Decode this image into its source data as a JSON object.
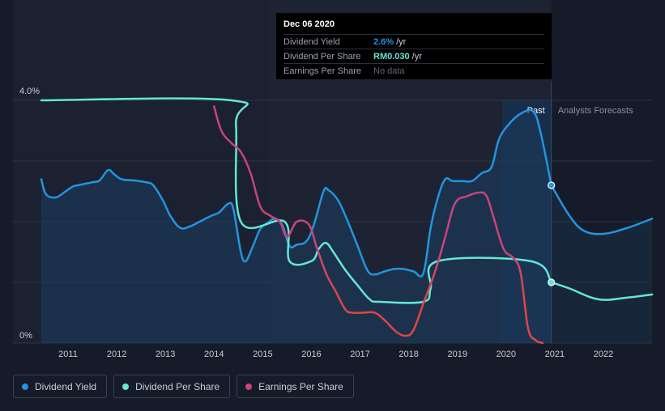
{
  "chart_data": {
    "type": "line",
    "x_ticks": [
      "2011",
      "2012",
      "2013",
      "2014",
      "2015",
      "2016",
      "2017",
      "2018",
      "2019",
      "2020",
      "2021",
      "2022"
    ],
    "y_ticks": [
      "0%",
      "4.0%"
    ],
    "past_label": "Past",
    "forecast_label": "Analysts Forecasts",
    "xlim": [
      2010.1,
      2023.0
    ],
    "ylim": [
      0,
      4.0
    ],
    "forecast_start": 2020.93,
    "colors": {
      "dividend_yield": "#2394df",
      "dividend_per_share": "#65e6d6",
      "earnings_per_share": "#c9437c",
      "earnings_negative": "#e04545"
    },
    "series": [
      {
        "name": "Dividend Yield",
        "key": "dividend_yield",
        "points": [
          [
            2010.45,
            2.7
          ],
          [
            2010.55,
            2.45
          ],
          [
            2010.75,
            2.4
          ],
          [
            2010.95,
            2.5
          ],
          [
            2011.1,
            2.58
          ],
          [
            2011.2,
            2.6
          ],
          [
            2011.5,
            2.65
          ],
          [
            2011.65,
            2.68
          ],
          [
            2011.82,
            2.85
          ],
          [
            2011.95,
            2.78
          ],
          [
            2012.1,
            2.7
          ],
          [
            2012.35,
            2.68
          ],
          [
            2012.6,
            2.65
          ],
          [
            2012.75,
            2.6
          ],
          [
            2012.95,
            2.35
          ],
          [
            2013.1,
            2.1
          ],
          [
            2013.3,
            1.9
          ],
          [
            2013.5,
            1.92
          ],
          [
            2013.7,
            2.0
          ],
          [
            2013.95,
            2.1
          ],
          [
            2014.1,
            2.15
          ],
          [
            2014.3,
            2.3
          ],
          [
            2014.4,
            2.2
          ],
          [
            2014.55,
            1.5
          ],
          [
            2014.65,
            1.35
          ],
          [
            2014.8,
            1.6
          ],
          [
            2014.95,
            1.88
          ],
          [
            2015.1,
            1.98
          ],
          [
            2015.25,
            2.05
          ],
          [
            2015.4,
            1.95
          ],
          [
            2015.55,
            1.6
          ],
          [
            2015.7,
            1.62
          ],
          [
            2015.9,
            1.68
          ],
          [
            2016.05,
            1.95
          ],
          [
            2016.25,
            2.5
          ],
          [
            2016.35,
            2.52
          ],
          [
            2016.55,
            2.35
          ],
          [
            2016.75,
            2.0
          ],
          [
            2016.95,
            1.6
          ],
          [
            2017.15,
            1.2
          ],
          [
            2017.3,
            1.13
          ],
          [
            2017.5,
            1.18
          ],
          [
            2017.7,
            1.22
          ],
          [
            2017.9,
            1.22
          ],
          [
            2018.1,
            1.18
          ],
          [
            2018.3,
            1.15
          ],
          [
            2018.45,
            1.9
          ],
          [
            2018.6,
            2.4
          ],
          [
            2018.75,
            2.7
          ],
          [
            2018.9,
            2.67
          ],
          [
            2019.1,
            2.67
          ],
          [
            2019.3,
            2.67
          ],
          [
            2019.5,
            2.8
          ],
          [
            2019.7,
            2.9
          ],
          [
            2019.85,
            3.35
          ],
          [
            2020.05,
            3.6
          ],
          [
            2020.3,
            3.78
          ],
          [
            2020.55,
            3.82
          ],
          [
            2020.7,
            3.5
          ],
          [
            2020.93,
            2.6
          ]
        ]
      },
      {
        "name": "Dividend Yield Forecast",
        "key": "dividend_yield",
        "forecast": true,
        "points": [
          [
            2020.93,
            2.6
          ],
          [
            2021.3,
            2.1
          ],
          [
            2021.6,
            1.85
          ],
          [
            2022.0,
            1.8
          ],
          [
            2022.5,
            1.9
          ],
          [
            2023.0,
            2.05
          ]
        ]
      },
      {
        "name": "Dividend Per Share",
        "key": "dividend_per_share",
        "points": [
          [
            2010.45,
            4.0
          ],
          [
            2014.35,
            4.0
          ],
          [
            2014.45,
            3.6
          ],
          [
            2014.55,
            2.0
          ],
          [
            2015.45,
            2.0
          ],
          [
            2015.55,
            1.35
          ],
          [
            2016.0,
            1.35
          ],
          [
            2016.15,
            1.55
          ],
          [
            2016.3,
            1.65
          ],
          [
            2016.45,
            1.5
          ],
          [
            2016.7,
            1.2
          ],
          [
            2016.95,
            0.95
          ],
          [
            2017.2,
            0.72
          ],
          [
            2017.4,
            0.68
          ],
          [
            2018.3,
            0.68
          ],
          [
            2018.45,
            0.9
          ],
          [
            2018.6,
            1.35
          ],
          [
            2020.5,
            1.35
          ],
          [
            2020.93,
            1.0
          ]
        ]
      },
      {
        "name": "Dividend Per Share Forecast",
        "key": "dividend_per_share",
        "forecast": true,
        "points": [
          [
            2020.93,
            1.0
          ],
          [
            2021.3,
            0.9
          ],
          [
            2021.9,
            0.72
          ],
          [
            2022.5,
            0.75
          ],
          [
            2023.0,
            0.8
          ]
        ]
      },
      {
        "name": "Earnings Per Share",
        "key": "earnings_per_share",
        "points": [
          [
            2014.0,
            3.9
          ],
          [
            2014.15,
            3.5
          ],
          [
            2014.35,
            3.3
          ],
          [
            2014.55,
            3.15
          ],
          [
            2014.75,
            2.8
          ],
          [
            2014.95,
            2.25
          ],
          [
            2015.15,
            2.1
          ],
          [
            2015.35,
            2.0
          ],
          [
            2015.5,
            1.75
          ],
          [
            2015.7,
            2.0
          ],
          [
            2015.95,
            1.95
          ],
          [
            2016.1,
            1.6
          ],
          [
            2016.3,
            1.15
          ],
          [
            2016.5,
            0.85
          ],
          [
            2016.7,
            0.55
          ],
          [
            2016.85,
            0.5
          ],
          [
            2017.05,
            0.5
          ],
          [
            2017.3,
            0.5
          ],
          [
            2017.5,
            0.38
          ],
          [
            2017.75,
            0.18
          ],
          [
            2017.95,
            0.12
          ],
          [
            2018.1,
            0.22
          ],
          [
            2018.3,
            0.65
          ],
          [
            2018.55,
            1.2
          ],
          [
            2018.75,
            1.75
          ],
          [
            2018.95,
            2.3
          ],
          [
            2019.2,
            2.42
          ],
          [
            2019.45,
            2.48
          ],
          [
            2019.6,
            2.42
          ],
          [
            2019.75,
            2.05
          ],
          [
            2019.95,
            1.55
          ],
          [
            2020.15,
            1.4
          ],
          [
            2020.3,
            1.15
          ],
          [
            2020.45,
            0.25
          ],
          [
            2020.6,
            0.05
          ],
          [
            2020.75,
            0.0
          ]
        ]
      }
    ],
    "tooltip_markers": [
      {
        "key": "dividend_yield",
        "x": 2020.93,
        "y": 2.6
      },
      {
        "key": "dividend_per_share",
        "x": 2020.93,
        "y": 1.0
      }
    ]
  },
  "tooltip": {
    "date": "Dec 06 2020",
    "rows": [
      {
        "label": "Dividend Yield",
        "value": "2.6%",
        "unit": "/yr",
        "color": "#2394df"
      },
      {
        "label": "Dividend Per Share",
        "value": "RM0.030",
        "unit": "/yr",
        "color": "#65e6d6"
      },
      {
        "label": "Earnings Per Share",
        "value": "No data",
        "unit": ""
      }
    ]
  },
  "legend": [
    {
      "label": "Dividend Yield",
      "color": "#2394df"
    },
    {
      "label": "Dividend Per Share",
      "color": "#65e6d6"
    },
    {
      "label": "Earnings Per Share",
      "color": "#c9437c"
    }
  ]
}
